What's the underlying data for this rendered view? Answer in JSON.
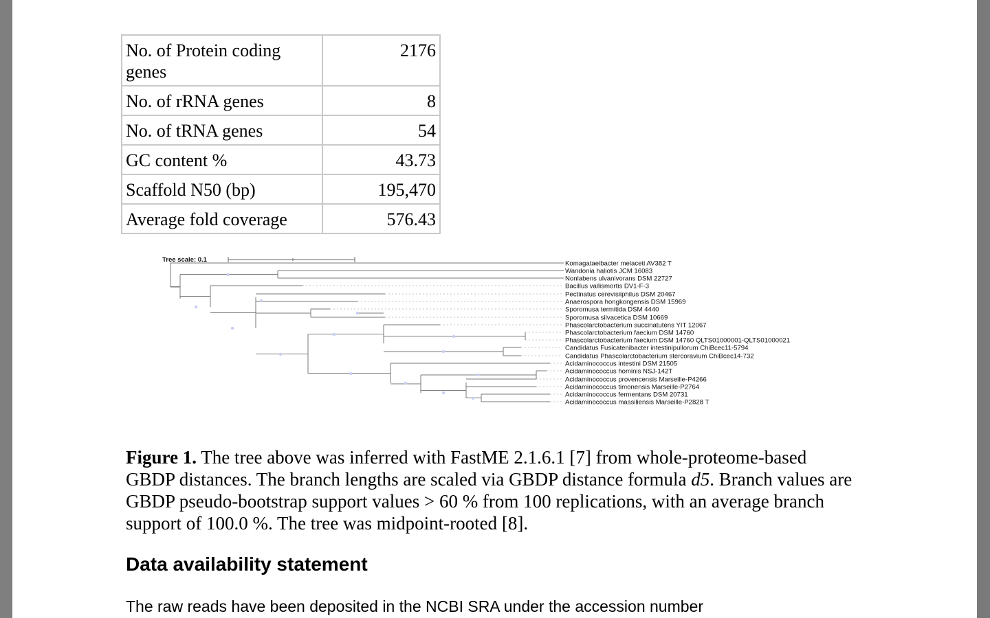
{
  "table": {
    "rows": [
      {
        "label": "No. of Protein coding genes",
        "value": "2176"
      },
      {
        "label": "No. of rRNA genes",
        "value": "8"
      },
      {
        "label": "No. of tRNA genes",
        "value": "54"
      },
      {
        "label": "GC content %",
        "value": "43.73"
      },
      {
        "label": "Scaffold N50 (bp)",
        "value": "195,470"
      },
      {
        "label": "Average fold coverage",
        "value": "576.43"
      }
    ]
  },
  "tree": {
    "scale_label": "Tree scale: 0.1",
    "taxa": [
      "Komagataeibacter melaceti AV382 T",
      "Wandonia haliotis JCM 16083",
      "Nonlabens ulvanivorans DSM 22727",
      "Bacillus vallismortis DV1-F-3",
      "Pectinatus cerevisiiphilus DSM 20467",
      "Anaerospora hongkongensis DSM 15969",
      "Sporomusa termitida DSM 4440",
      "Sporomusa silvacetica DSM 10669",
      "Phascolarctobacterium succinatutens YIT 12067",
      "Phascolarctobacterium faecium DSM 14760",
      "Phascolarctobacterium faecium DSM 14760 QLTS01000001-QLTS01000021",
      "Candidatus Fusicatenibacter intestinipullorum ChiBcec11-5794",
      "Candidatus Phascolarctobacterium stercoravium ChiBcec14-732",
      "Acidaminococcus intestini DSM 21505",
      "Acidaminococcus hominis NSJ-142T",
      "Acidaminococcus provencensis Marseille-P4266",
      "Acidaminococcus timonensis Marseille-P2764",
      "Acidaminococcus fermentans DSM 20731",
      "Acidaminococcus massiliensis Marseille-P2828 T"
    ]
  },
  "caption": {
    "label": "Figure 1.",
    "text1": " The tree above was inferred with FastME 2.1.6.1 [7] from whole-proteome-based GBDP distances. The branch lengths are scaled via GBDP distance formula ",
    "italic": "d5",
    "text2": ". Branch values are GBDP pseudo-bootstrap support values > 60 % from 100 replications, with an average branch support of 100.0 %. The tree was midpoint-rooted [8]."
  },
  "section": {
    "heading": "Data availability statement",
    "body": "The raw reads have been deposited in the NCBI SRA under the accession number"
  }
}
